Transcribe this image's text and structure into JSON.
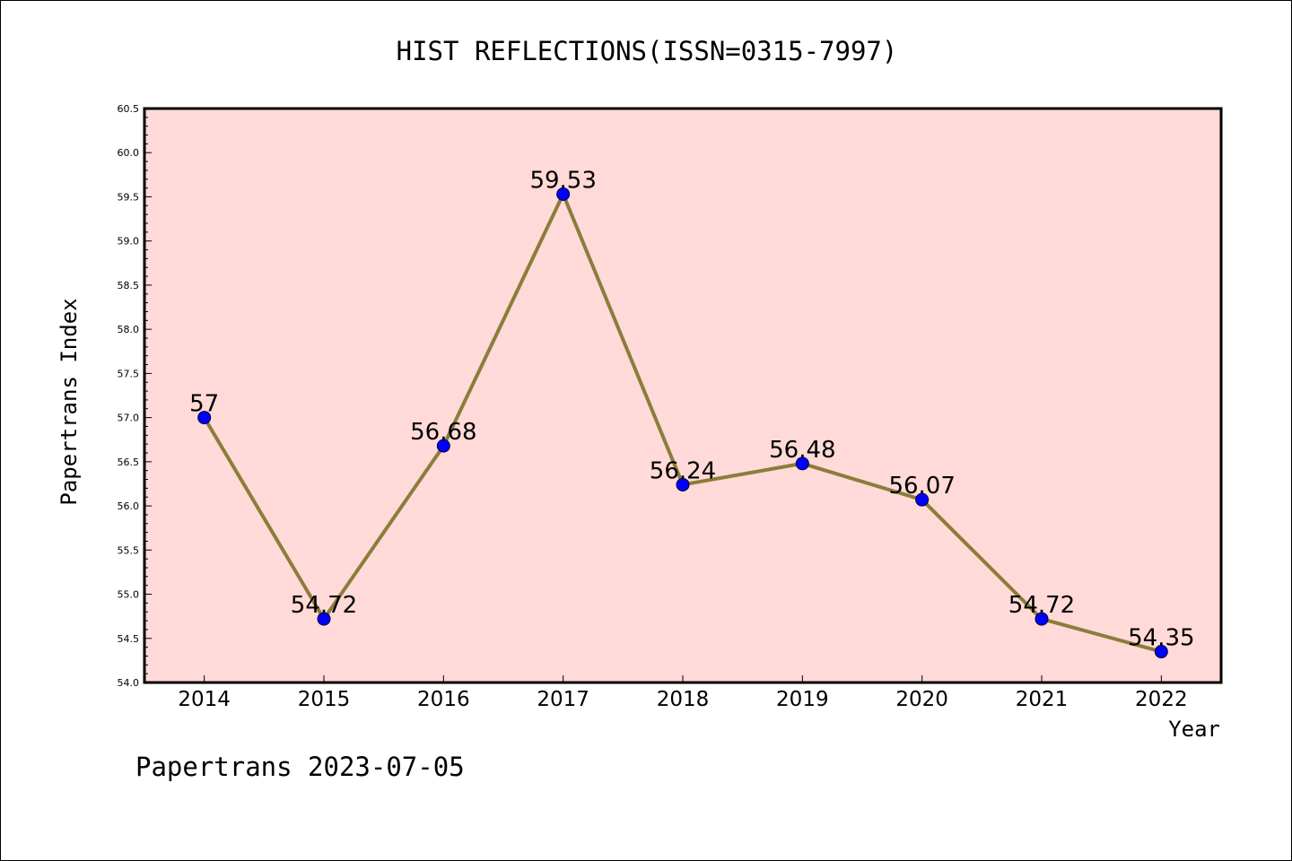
{
  "chart_data": {
    "type": "line",
    "title": "HIST REFLECTIONS(ISSN=0315-7997)",
    "xlabel": "Year",
    "ylabel": "Papertrans Index",
    "x": [
      "2014",
      "2015",
      "2016",
      "2017",
      "2018",
      "2019",
      "2020",
      "2021",
      "2022"
    ],
    "series": [
      {
        "values": [
          57,
          54.72,
          56.68,
          59.53,
          56.24,
          56.48,
          56.07,
          54.72,
          54.35
        ],
        "labels": [
          "57",
          "54.72",
          "56.68",
          "59.53",
          "56.24",
          "56.48",
          "56.07",
          "54.72",
          "54.35"
        ]
      }
    ],
    "ylim": [
      54.0,
      60.5
    ],
    "yticks": [
      "54.0",
      "54.5",
      "55.0",
      "55.5",
      "56.0",
      "56.5",
      "57.0",
      "57.5",
      "58.0",
      "58.5",
      "59.0",
      "59.5",
      "60.0",
      "60.5"
    ],
    "grid": false,
    "colors": {
      "plot_background": "#FFDAD8",
      "line": "#8B7D3A",
      "marker": "#0000FF"
    }
  },
  "footer": "Papertrans 2023-07-05"
}
